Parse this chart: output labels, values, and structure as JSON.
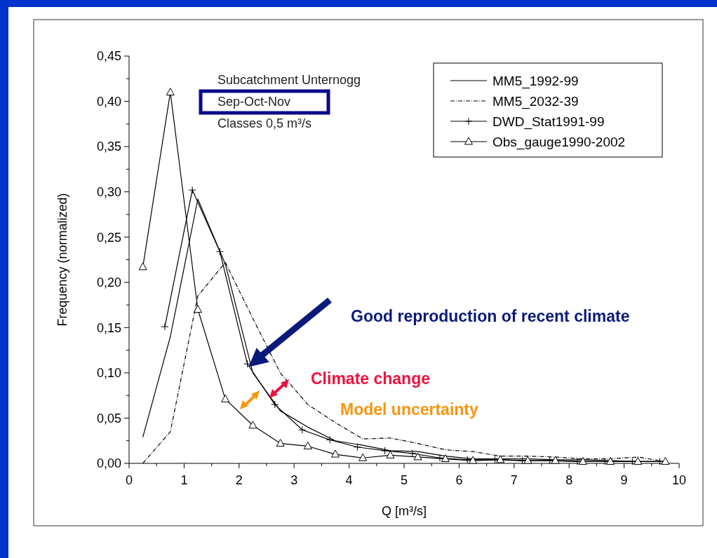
{
  "chart_data": {
    "type": "line",
    "xlabel": "Q [m³/s]",
    "ylabel": "Frequency (normalized)",
    "xlim": [
      0,
      10
    ],
    "xticks": [
      0,
      1,
      2,
      3,
      4,
      5,
      6,
      7,
      8,
      9,
      10
    ],
    "ylim": [
      0,
      0.45
    ],
    "yticks": [
      {
        "value": 0,
        "label": "0,00"
      },
      {
        "value": 0.05,
        "label": "0,05"
      },
      {
        "value": 0.1,
        "label": "0,10"
      },
      {
        "value": 0.15,
        "label": "0,15"
      },
      {
        "value": 0.2,
        "label": "0,20"
      },
      {
        "value": 0.25,
        "label": "0,25"
      },
      {
        "value": 0.3,
        "label": "0,30"
      },
      {
        "value": 0.35,
        "label": "0,35"
      },
      {
        "value": 0.4,
        "label": "0,40"
      },
      {
        "value": 0.45,
        "label": "0,45"
      }
    ],
    "legend": "top right",
    "grid": false,
    "annotations": [
      "Subcatchment Unternogg",
      "Sep-Oct-Nov",
      "Classes 0,5 m³/s",
      "Good reproduction of recent climate",
      "Climate change",
      "Model uncertainty"
    ],
    "series": [
      {
        "name": "MM5_1992-99",
        "color": "#000000",
        "line_style": "solid",
        "marker": "none",
        "x": [
          0.25,
          0.75,
          1.25,
          1.75,
          2.25,
          2.75,
          3.25,
          3.75,
          4.25,
          4.75,
          5.25,
          5.75,
          6.25,
          6.75,
          7.25,
          7.75,
          8.25,
          8.75,
          9.25,
          9.75
        ],
        "values": [
          0.029,
          0.14,
          0.292,
          0.22,
          0.1,
          0.058,
          0.04,
          0.025,
          0.02,
          0.014,
          0.013,
          0.008,
          0.005,
          0.005,
          0.005,
          0.004,
          0.004,
          0.003,
          0.002,
          0.002
        ]
      },
      {
        "name": "MM5_2032-39",
        "color": "#000000",
        "line_style": "dashdot",
        "marker": "none",
        "x": [
          0.25,
          0.75,
          1.25,
          1.75,
          2.25,
          2.75,
          3.25,
          3.75,
          4.25,
          4.75,
          5.25,
          5.75,
          6.25,
          6.75,
          7.25,
          7.75,
          8.25,
          8.75,
          9.25,
          9.75
        ],
        "values": [
          0.0,
          0.035,
          0.185,
          0.222,
          0.16,
          0.1,
          0.065,
          0.045,
          0.027,
          0.028,
          0.022,
          0.015,
          0.013,
          0.008,
          0.008,
          0.007,
          0.005,
          0.005,
          0.007,
          0.002
        ]
      },
      {
        "name": "DWD_Stat1991-99",
        "color": "#000000",
        "line_style": "solid",
        "marker": "cross",
        "x": [
          0.65,
          1.15,
          1.65,
          2.15,
          2.65,
          3.15,
          3.65,
          4.15,
          4.65,
          5.15,
          5.65,
          6.15,
          6.65,
          7.15,
          7.65,
          8.15,
          8.65,
          9.15,
          9.65
        ],
        "values": [
          0.151,
          0.302,
          0.234,
          0.11,
          0.065,
          0.037,
          0.026,
          0.018,
          0.014,
          0.011,
          0.006,
          0.004,
          0.004,
          0.003,
          0.003,
          0.002,
          0.002,
          0.002,
          0.002
        ]
      },
      {
        "name": "Obs_gauge1990-2002",
        "color": "#000000",
        "line_style": "solid",
        "marker": "triangle",
        "x": [
          0.25,
          0.75,
          1.25,
          1.75,
          2.25,
          2.75,
          3.25,
          3.75,
          4.25,
          4.75,
          5.25,
          5.75,
          6.25,
          6.75,
          7.25,
          7.75,
          8.25,
          8.75,
          9.25,
          9.75
        ],
        "values": [
          0.217,
          0.41,
          0.17,
          0.071,
          0.042,
          0.022,
          0.019,
          0.01,
          0.006,
          0.009,
          0.007,
          0.005,
          0.003,
          0.004,
          0.003,
          0.003,
          0.002,
          0.002,
          0.002,
          0.002
        ]
      }
    ]
  }
}
